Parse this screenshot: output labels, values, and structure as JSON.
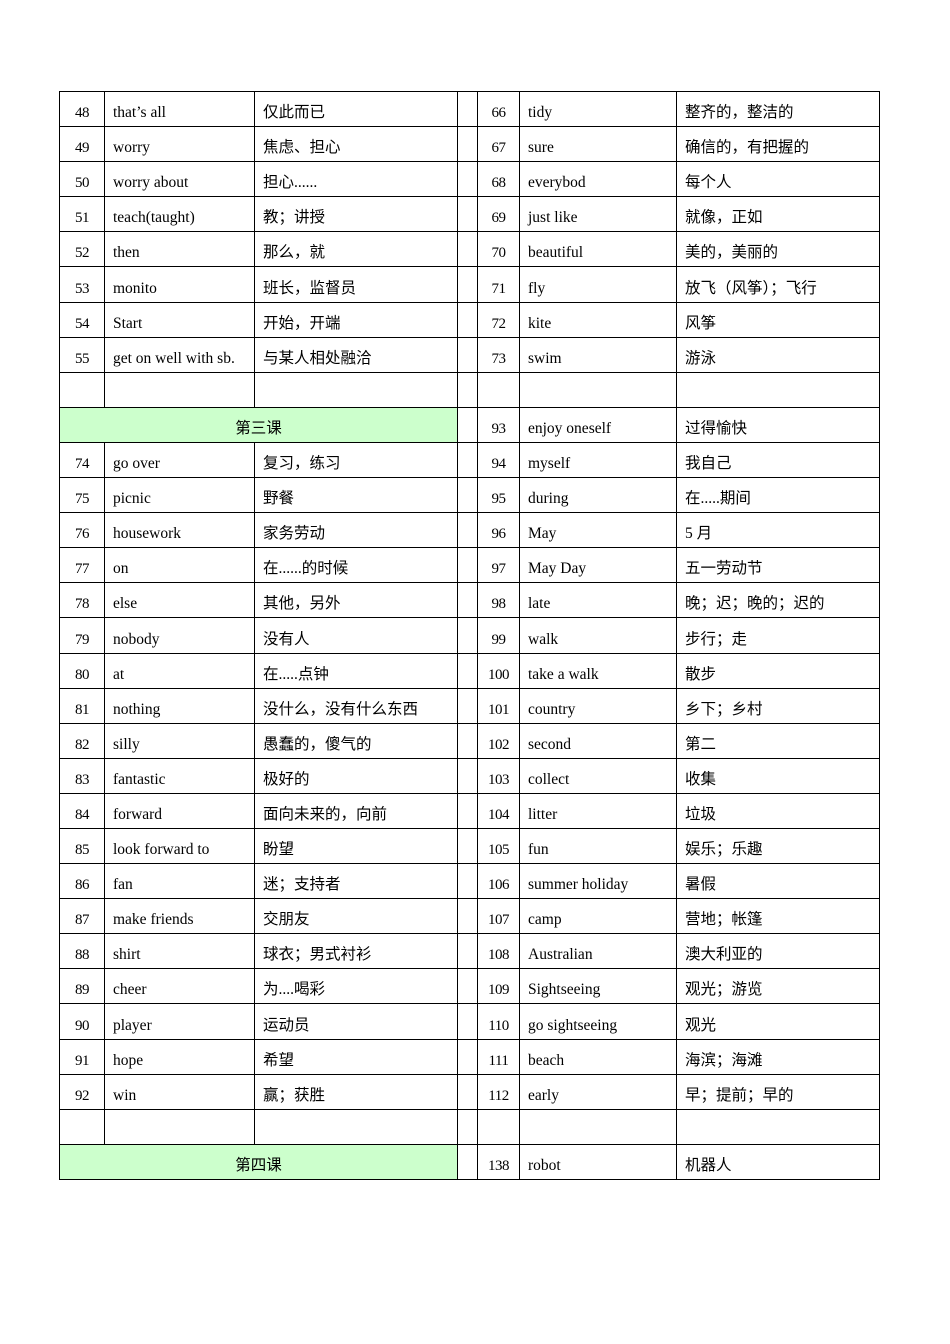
{
  "sections": [
    {
      "rows": [
        {
          "left": [
            48,
            "that’s all",
            "仅此而已"
          ],
          "right": [
            66,
            "tidy",
            "整齐的，整洁的"
          ]
        },
        {
          "left": [
            49,
            "worry",
            "焦虑、担心"
          ],
          "right": [
            67,
            "sure",
            "确信的，有把握的"
          ]
        },
        {
          "left": [
            50,
            "worry about",
            "担心......"
          ],
          "right": [
            68,
            "everybod",
            "每个人"
          ]
        },
        {
          "left": [
            51,
            "teach(taught)",
            "教；讲授"
          ],
          "right": [
            69,
            "just like",
            "就像，正如"
          ]
        },
        {
          "left": [
            52,
            "then",
            "那么，就"
          ],
          "right": [
            70,
            "beautiful",
            "美的，美丽的"
          ]
        },
        {
          "left": [
            53,
            "monito",
            "班长，监督员"
          ],
          "right": [
            71,
            "fly",
            "放飞（风筝）；飞行"
          ]
        },
        {
          "left": [
            54,
            "Start",
            "开始，开端"
          ],
          "right": [
            72,
            "kite",
            "风筝"
          ]
        },
        {
          "left": [
            55,
            "get on well with sb.",
            "与某人相处融洽"
          ],
          "right": [
            73,
            "swim",
            "游泳"
          ]
        }
      ]
    },
    {
      "rows": [
        {
          "left": "第三课",
          "right": [
            93,
            "enjoy oneself",
            "过得愉快"
          ]
        },
        {
          "left": [
            74,
            "go over",
            "复习，练习"
          ],
          "right": [
            94,
            "myself",
            "我自己"
          ]
        },
        {
          "left": [
            75,
            "picnic",
            "野餐"
          ],
          "right": [
            95,
            "during",
            "在.....期间"
          ]
        },
        {
          "left": [
            76,
            "housework",
            "家务劳动"
          ],
          "right": [
            96,
            "May",
            "5 月"
          ]
        },
        {
          "left": [
            77,
            "on",
            "在......的时候"
          ],
          "right": [
            97,
            "May Day",
            "五一劳动节"
          ]
        },
        {
          "left": [
            78,
            "else",
            "其他，另外"
          ],
          "right": [
            98,
            "late",
            "晚；迟；晚的；迟的"
          ]
        },
        {
          "left": [
            79,
            "nobody",
            "没有人"
          ],
          "right": [
            99,
            "walk",
            "步行；走"
          ]
        },
        {
          "left": [
            80,
            "at",
            "在.....点钟"
          ],
          "right": [
            100,
            "take a walk",
            "散步"
          ]
        },
        {
          "left": [
            81,
            "nothing",
            "没什么，没有什么东西"
          ],
          "right": [
            101,
            "country",
            "乡下；乡村"
          ]
        },
        {
          "left": [
            82,
            "silly",
            "愚蠢的，傻气的"
          ],
          "right": [
            102,
            "second",
            "第二"
          ]
        },
        {
          "left": [
            83,
            "fantastic",
            "极好的"
          ],
          "right": [
            103,
            "collect",
            "收集"
          ]
        },
        {
          "left": [
            84,
            "forward",
            "面向未来的，向前"
          ],
          "right": [
            104,
            "litter",
            "垃圾"
          ]
        },
        {
          "left": [
            85,
            "look forward to",
            "盼望"
          ],
          "right": [
            105,
            "fun",
            "娱乐；乐趣"
          ]
        },
        {
          "left": [
            86,
            "fan",
            "迷；支持者"
          ],
          "right": [
            106,
            "summer holiday",
            "暑假"
          ]
        },
        {
          "left": [
            87,
            "make friends",
            "交朋友"
          ],
          "right": [
            107,
            "camp",
            "营地；帐篷"
          ]
        },
        {
          "left": [
            88,
            "shirt",
            "球衣；男式衬衫"
          ],
          "right": [
            108,
            "Australian",
            "澳大利亚的"
          ]
        },
        {
          "left": [
            89,
            "cheer",
            "为....喝彩"
          ],
          "right": [
            109,
            "Sightseeing",
            "观光；游览"
          ]
        },
        {
          "left": [
            90,
            "player",
            "运动员"
          ],
          "right": [
            110,
            "go sightseeing",
            "观光"
          ]
        },
        {
          "left": [
            91,
            "hope",
            "希望"
          ],
          "right": [
            111,
            "beach",
            "海滨；海滩"
          ]
        },
        {
          "left": [
            92,
            "win",
            "赢；获胜"
          ],
          "right": [
            112,
            "early",
            "早；提前；早的"
          ]
        }
      ]
    },
    {
      "rows": [
        {
          "left": "第四课",
          "right": [
            138,
            "robot",
            "机器人"
          ]
        }
      ]
    }
  ]
}
